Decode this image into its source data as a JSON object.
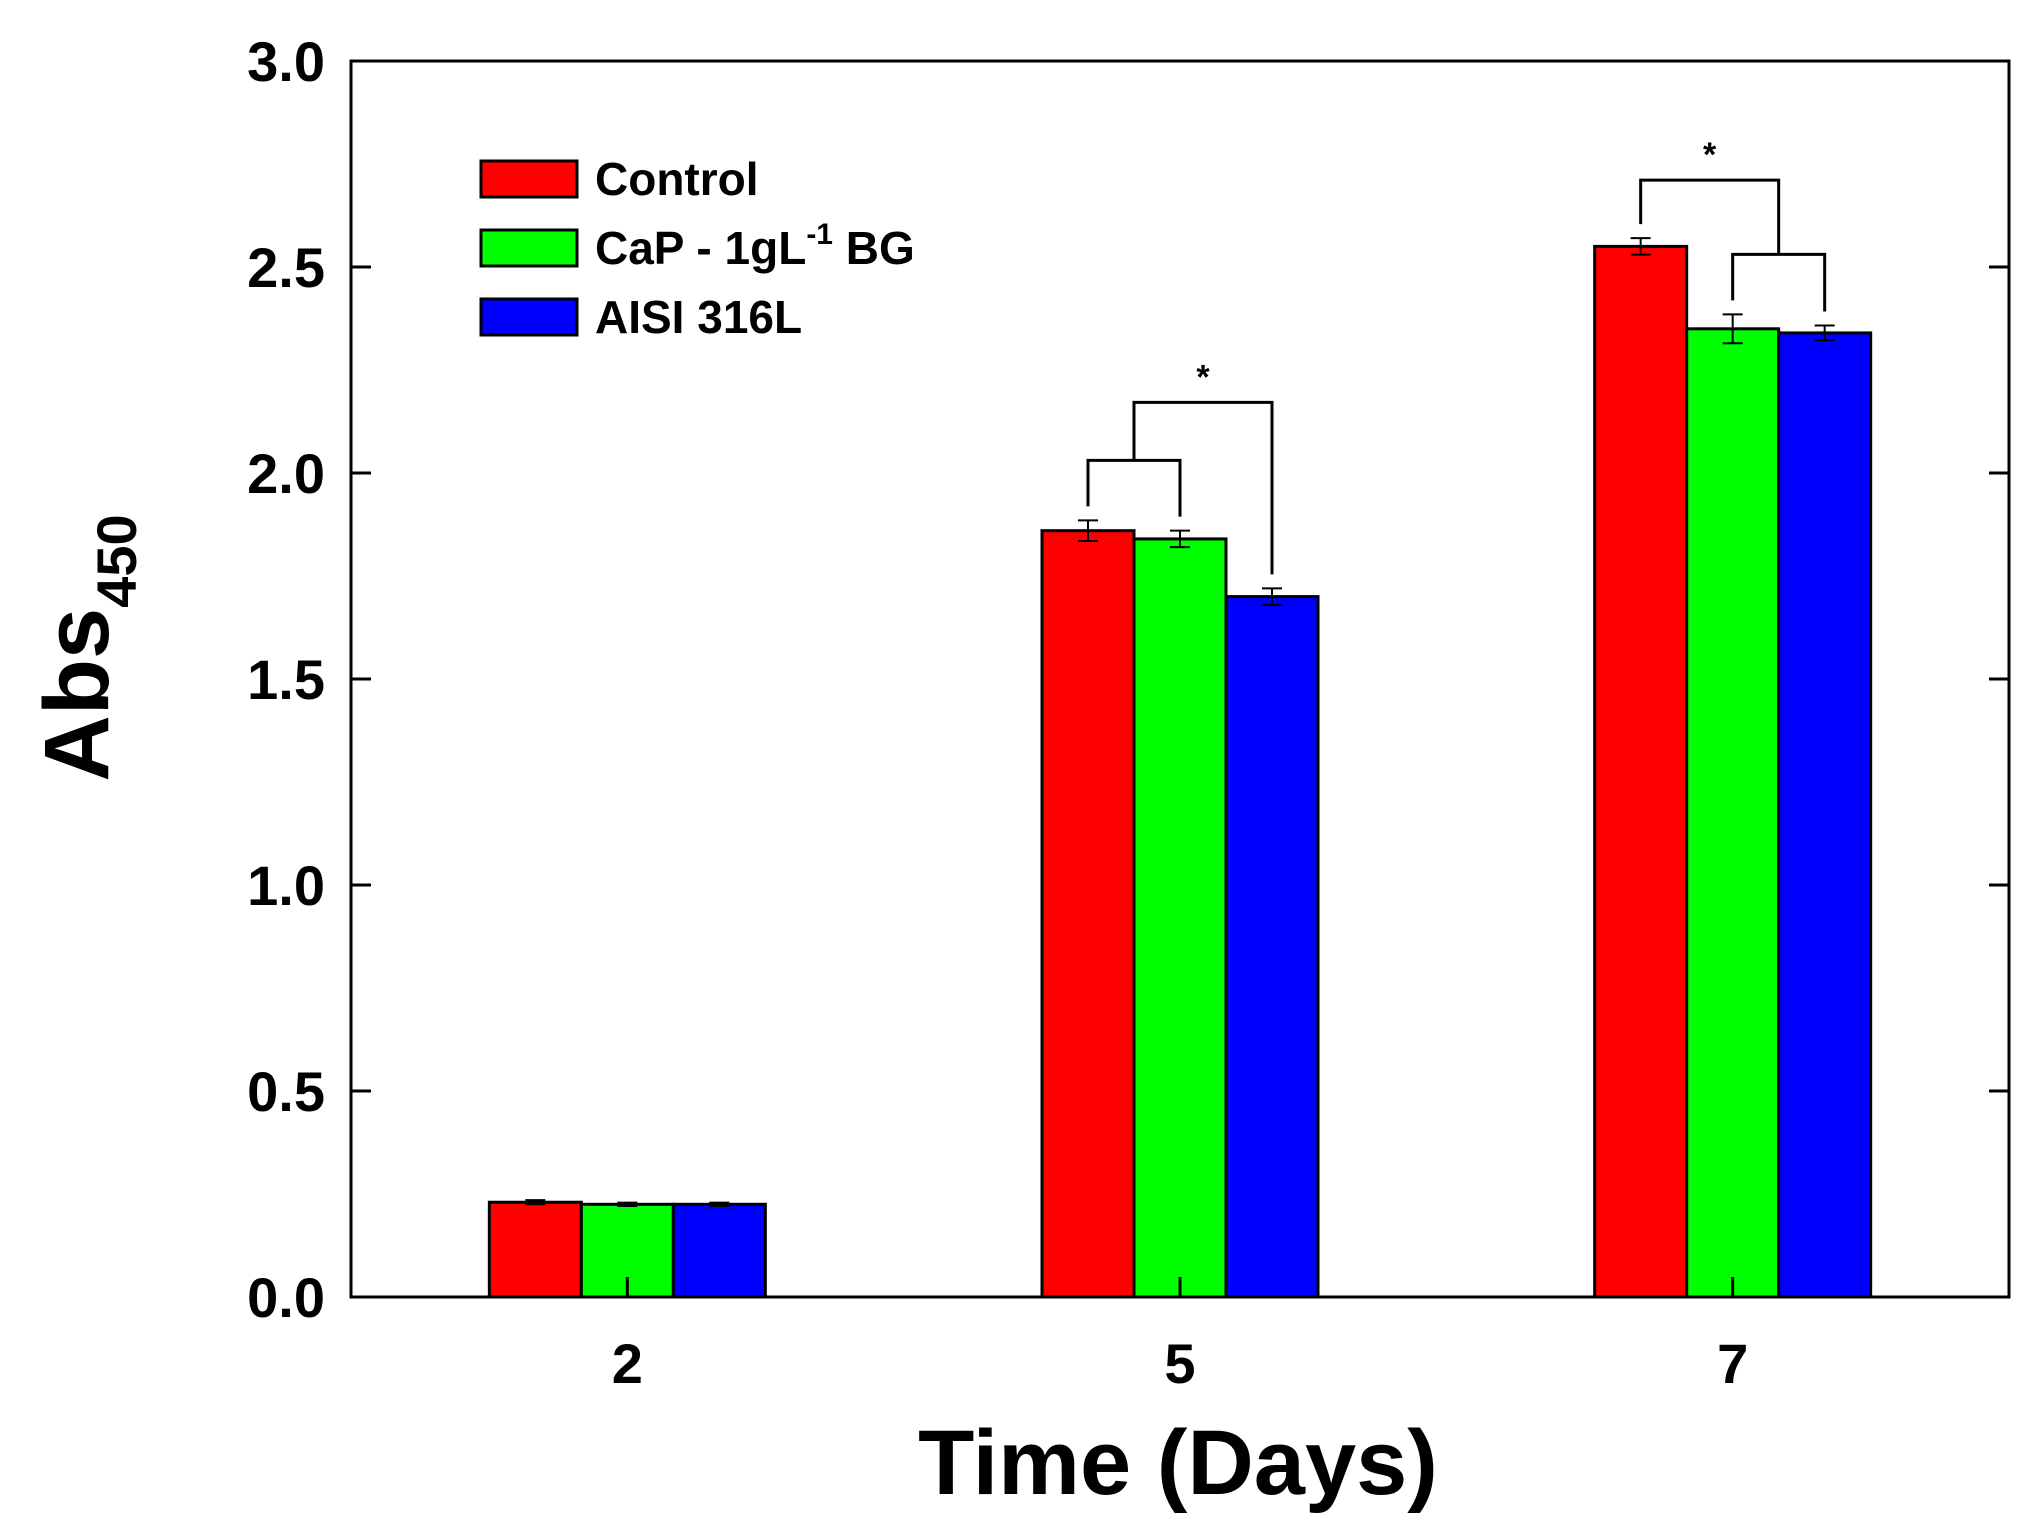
{
  "chart_data": {
    "type": "bar",
    "title": "",
    "xlabel": "Time (Days)",
    "ylabel": {
      "main": "Abs",
      "sub": "450"
    },
    "categories": [
      "2",
      "5",
      "7"
    ],
    "ylim": [
      0,
      3.0
    ],
    "yticks": [
      "0.0",
      "0.5",
      "1.0",
      "1.5",
      "2.0",
      "2.5",
      "3.0"
    ],
    "legend_position": "top-left",
    "series": [
      {
        "name": "Control",
        "color": "#ff0000",
        "values": [
          0.23,
          1.86,
          2.55
        ],
        "errors": [
          0.005,
          0.025,
          0.02
        ]
      },
      {
        "name": "CaP - 1gL-1 BG",
        "legend_main": "CaP - 1gL",
        "legend_sup": "-1",
        "legend_tail": " BG",
        "color": "#00ff00",
        "values": [
          0.225,
          1.84,
          2.35
        ],
        "errors": [
          0.004,
          0.02,
          0.035
        ]
      },
      {
        "name": "AISI 316L",
        "color": "#0000ff",
        "values": [
          0.225,
          1.7,
          2.34
        ],
        "errors": [
          0.004,
          0.02,
          0.018
        ]
      }
    ],
    "annotations": [
      {
        "category": "5",
        "label": "*",
        "inner_pair": [
          "Control",
          "CaP - 1gL-1 BG"
        ],
        "outer_target": "AISI 316L"
      },
      {
        "category": "7",
        "label": "*",
        "inner_pair": [
          "CaP - 1gL-1 BG",
          "AISI 316L"
        ],
        "outer_target": "Control"
      }
    ]
  }
}
